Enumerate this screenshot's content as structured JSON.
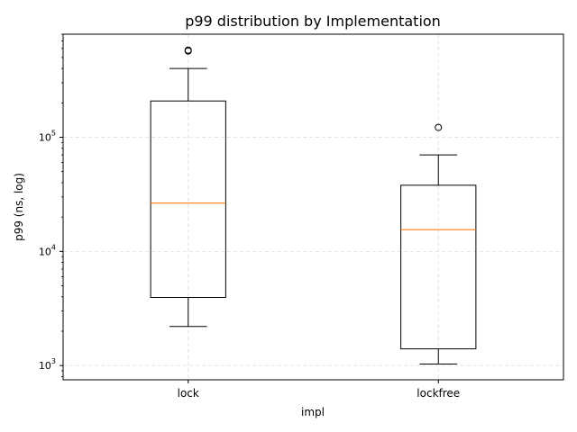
{
  "chart_data": {
    "type": "box",
    "title": "p99 distribution by Implementation",
    "xlabel": "impl",
    "ylabel": "p99 (ns, log)",
    "yscale": "log",
    "ylim": [
      750,
      800000
    ],
    "grid": true,
    "categories": [
      "lock",
      "lockfree"
    ],
    "boxes": [
      {
        "name": "lock",
        "whisker_low": 2200,
        "q1": 3950,
        "median": 26500,
        "q3": 208000,
        "whisker_high": 400000,
        "outliers": [
          580000,
          570000
        ]
      },
      {
        "name": "lockfree",
        "whisker_low": 1030,
        "q1": 1400,
        "median": 15500,
        "q3": 38000,
        "whisker_high": 70000,
        "outliers": [
          122000
        ]
      }
    ],
    "yticks": [
      {
        "value": 1000,
        "base": "10",
        "exp": "3"
      },
      {
        "value": 10000,
        "base": "10",
        "exp": "4"
      },
      {
        "value": 100000,
        "base": "10",
        "exp": "5"
      }
    ],
    "colors": {
      "median": "#ff7f0e",
      "box": "#000000",
      "grid": "#dddddd"
    }
  }
}
